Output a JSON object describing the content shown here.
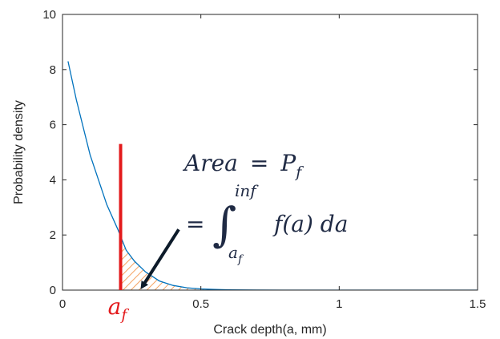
{
  "chart_data": {
    "type": "line",
    "xlabel": "Crack depth(a, mm)",
    "ylabel": "Probability density",
    "xlim": [
      0,
      1.5
    ],
    "ylim": [
      0,
      10
    ],
    "x_ticks": [
      "0",
      "0.5",
      "1",
      "1.5"
    ],
    "y_ticks": [
      "0",
      "2",
      "4",
      "6",
      "8",
      "10"
    ],
    "x_tick_values": [
      0,
      0.5,
      1,
      1.5
    ],
    "y_tick_values": [
      0,
      2,
      4,
      6,
      8,
      10
    ],
    "grid": false,
    "series": [
      {
        "color": "#0072bd",
        "x": [
          0.02,
          0.05,
          0.08,
          0.1,
          0.13,
          0.16,
          0.2,
          0.23,
          0.26,
          0.3,
          0.35,
          0.4,
          0.45,
          0.5,
          0.55,
          0.6,
          0.7,
          0.8,
          0.9,
          1.0,
          1.2,
          1.5
        ],
        "y": [
          8.3,
          6.9,
          5.7,
          4.9,
          4.0,
          3.1,
          2.2,
          1.45,
          1.05,
          0.66,
          0.33,
          0.17,
          0.085,
          0.045,
          0.022,
          0.012,
          0.004,
          0.001,
          0.0005,
          0.0002,
          0.0001,
          0.0
        ]
      }
    ],
    "threshold": {
      "x": 0.21,
      "y_top": 5.3,
      "color": "#e31a1c",
      "label": "a",
      "label_sub": "f"
    },
    "shaded_region": {
      "from_x": 0.21,
      "fill": "hatched",
      "color": "#f4a261"
    },
    "annotation": {
      "line1_lhs": "Area",
      "line1_eq": "=",
      "line1_rhs": "P",
      "line1_rhs_sub": "f",
      "line2_eq": "=",
      "integral_sign": "∫",
      "integral_upper": "inf",
      "integral_lower": "a",
      "integral_lower_sub": "f",
      "integrand": "f(a) da",
      "arrow_color": "#0d1b2a",
      "arrow_from": [
        0.42,
        2.2
      ],
      "arrow_to": [
        0.29,
        0.15
      ]
    }
  }
}
